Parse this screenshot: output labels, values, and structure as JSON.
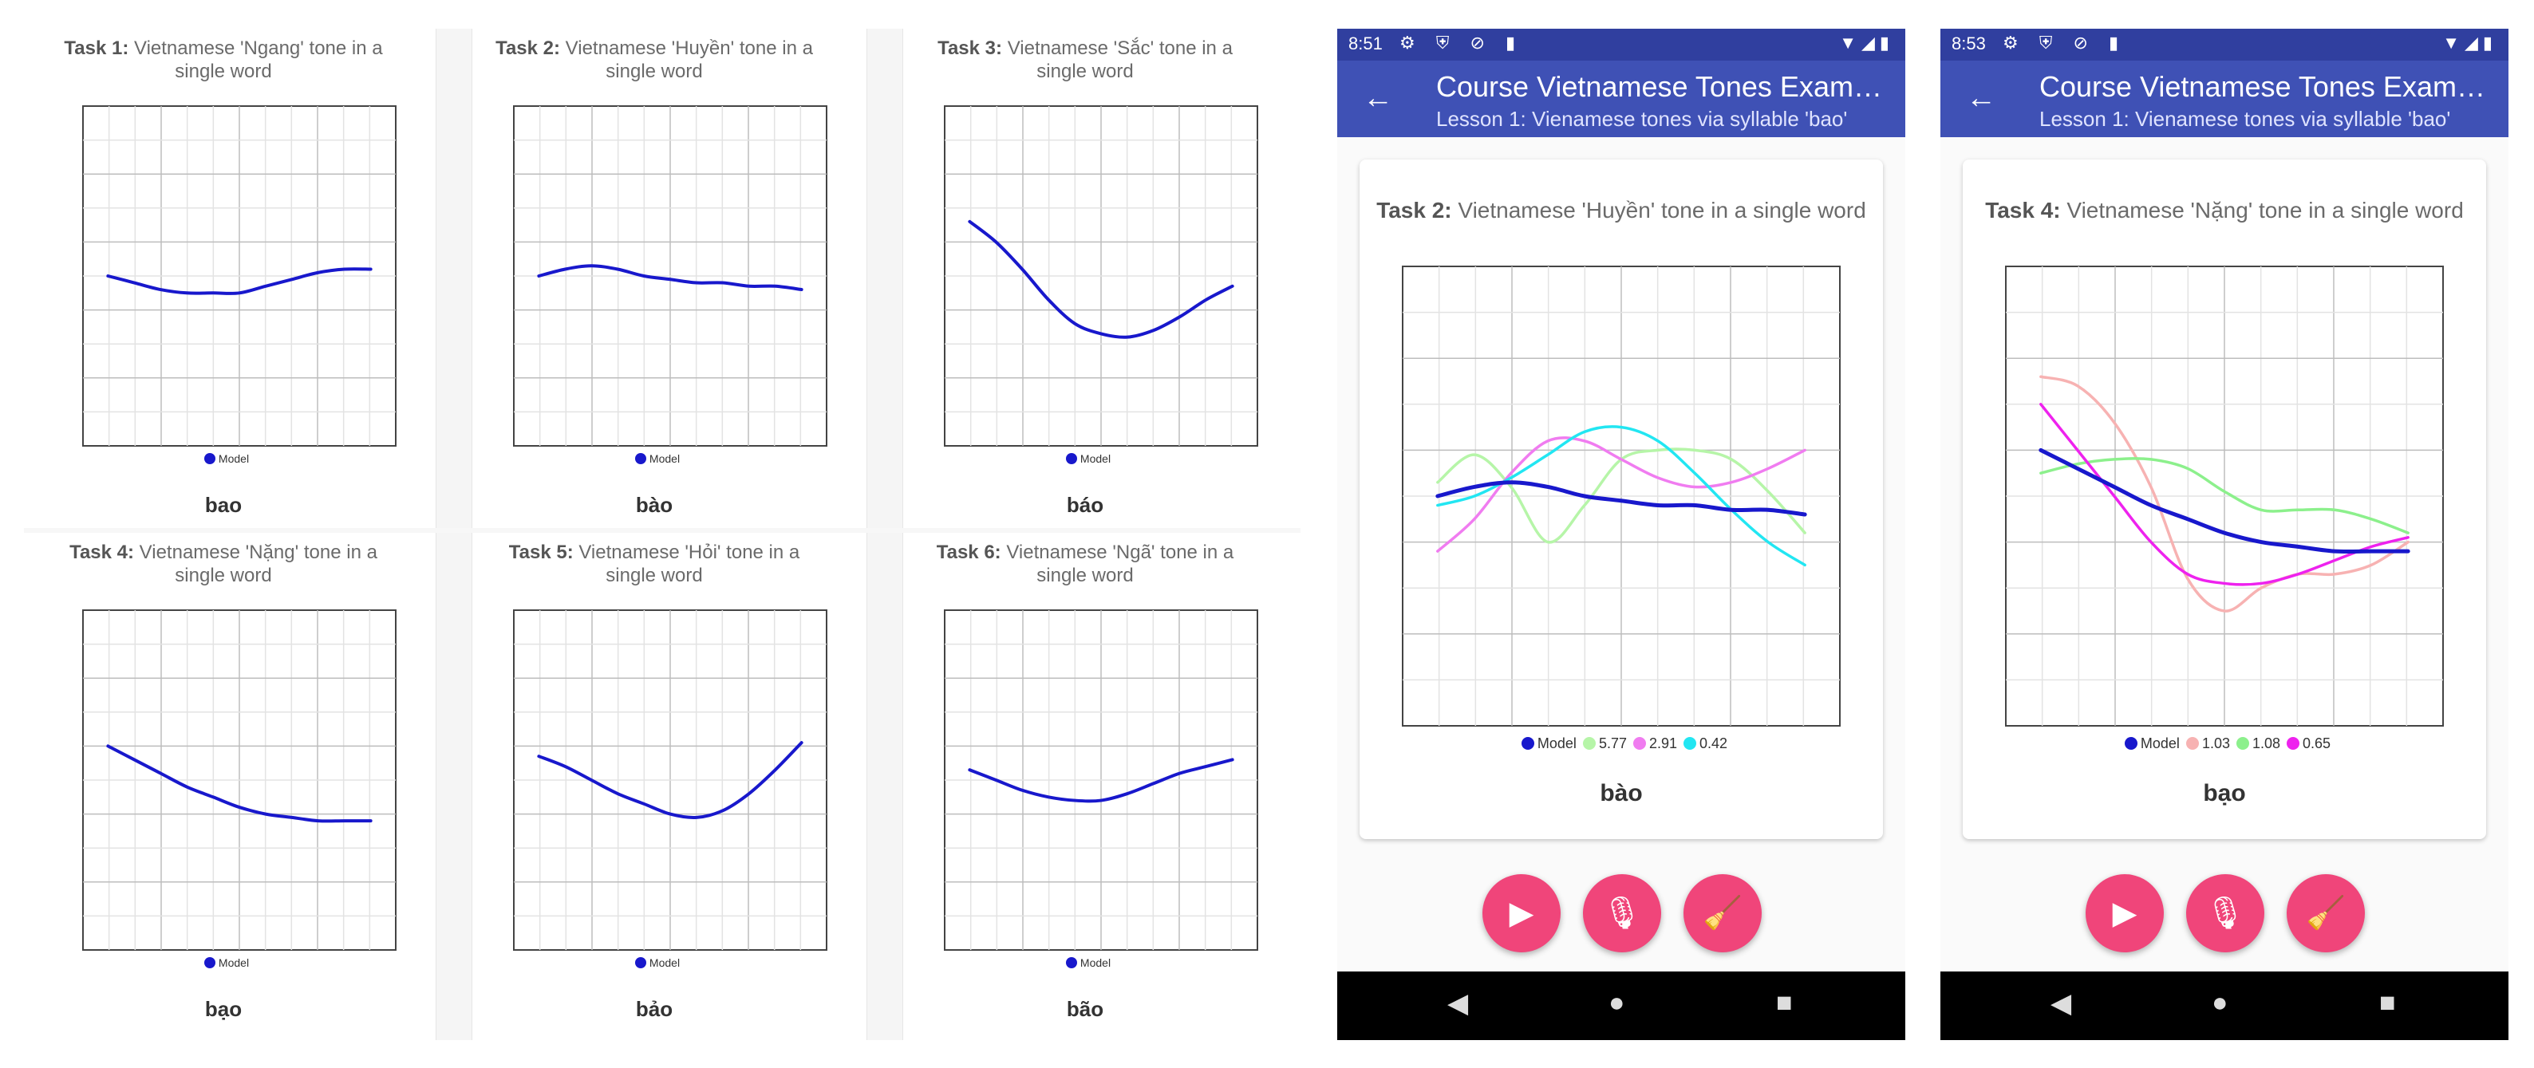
{
  "tasks": [
    {
      "label": "Task 1:",
      "desc": "Vietnamese 'Ngang' tone in a single word",
      "word": "bao",
      "legend": "Model"
    },
    {
      "label": "Task 2:",
      "desc": "Vietnamese 'Huyền' tone in a single word",
      "word": "bào",
      "legend": "Model"
    },
    {
      "label": "Task 3:",
      "desc": "Vietnamese 'Sắc' tone in a single word",
      "word": "báo",
      "legend": "Model"
    },
    {
      "label": "Task 4:",
      "desc": "Vietnamese 'Nặng' tone in a single word",
      "word": "bạo",
      "legend": "Model"
    },
    {
      "label": "Task 5:",
      "desc": "Vietnamese 'Hỏi' tone in a single word",
      "word": "bảo",
      "legend": "Model"
    },
    {
      "label": "Task 6:",
      "desc": "Vietnamese 'Ngã' tone in a single word",
      "word": "bão",
      "legend": "Model"
    }
  ],
  "phones": [
    {
      "time": "8:51",
      "status_icons": "⚙ ⛨ ⊘ ▮",
      "right_icons": "▼◢▮",
      "title": "Course Vietnamese Tones Examples",
      "subtitle": "Lesson 1: Vienamese tones via syllable 'bao'",
      "task_label": "Task 2:",
      "task_desc": "Vietnamese 'Huyền' tone in a single word",
      "word": "bào",
      "legend": [
        {
          "name": "Model",
          "color": "#1818cc"
        },
        {
          "name": "5.77",
          "color": "#b6f5a8"
        },
        {
          "name": "2.91",
          "color": "#f07cf0"
        },
        {
          "name": "0.42",
          "color": "#22e6f2"
        }
      ]
    },
    {
      "time": "8:53",
      "status_icons": "⚙ ⛨ ⊘ ▮",
      "right_icons": "▼◢▮",
      "title": "Course Vietnamese Tones Examples",
      "subtitle": "Lesson 1: Vienamese tones via syllable 'bao'",
      "task_label": "Task 4:",
      "task_desc": "Vietnamese 'Nặng' tone in a single word",
      "word": "bạo",
      "legend": [
        {
          "name": "Model",
          "color": "#1818cc"
        },
        {
          "name": "1.03",
          "color": "#f7b2b2"
        },
        {
          "name": "1.08",
          "color": "#8cf08c"
        },
        {
          "name": "0.65",
          "color": "#ee22ee"
        }
      ]
    }
  ],
  "icons": {
    "back": "arrow-left-icon",
    "play": "play-icon",
    "mic": "microphone-icon",
    "clear": "broom-icon",
    "nav": [
      "back-triangle-icon",
      "home-circle-icon",
      "recents-square-icon"
    ]
  },
  "colors": {
    "model": "#1818cc",
    "accent": "#f0457a",
    "appbar": "#3f51b5",
    "statusbar": "#303f9f"
  },
  "chart_data": [
    {
      "type": "line",
      "title": "Task 1: Vietnamese 'Ngang' tone in a single word",
      "series": [
        {
          "name": "Model",
          "y": [
            0.5,
            0.48,
            0.46,
            0.45,
            0.45,
            0.45,
            0.47,
            0.49,
            0.51,
            0.52,
            0.52
          ]
        }
      ]
    },
    {
      "type": "line",
      "title": "Task 2: Vietnamese 'Huyền' tone in a single word",
      "series": [
        {
          "name": "Model",
          "y": [
            0.5,
            0.52,
            0.53,
            0.52,
            0.5,
            0.49,
            0.48,
            0.48,
            0.47,
            0.47,
            0.46
          ]
        }
      ]
    },
    {
      "type": "line",
      "title": "Task 3: Vietnamese 'Sắc' tone in a single word",
      "series": [
        {
          "name": "Model",
          "y": [
            0.66,
            0.6,
            0.52,
            0.43,
            0.36,
            0.33,
            0.32,
            0.34,
            0.38,
            0.43,
            0.47
          ]
        }
      ]
    },
    {
      "type": "line",
      "title": "Task 4: Vietnamese 'Nặng' tone in a single word",
      "series": [
        {
          "name": "Model",
          "y": [
            0.6,
            0.56,
            0.52,
            0.48,
            0.45,
            0.42,
            0.4,
            0.39,
            0.38,
            0.38,
            0.38
          ]
        }
      ]
    },
    {
      "type": "line",
      "title": "Task 5: Vietnamese 'Hỏi' tone in a single word",
      "series": [
        {
          "name": "Model",
          "y": [
            0.57,
            0.54,
            0.5,
            0.46,
            0.43,
            0.4,
            0.39,
            0.41,
            0.46,
            0.53,
            0.61
          ]
        }
      ]
    },
    {
      "type": "line",
      "title": "Task 6: Vietnamese 'Ngã' tone in a single word",
      "series": [
        {
          "name": "Model",
          "y": [
            0.53,
            0.5,
            0.47,
            0.45,
            0.44,
            0.44,
            0.46,
            0.49,
            0.52,
            0.54,
            0.56
          ]
        }
      ]
    },
    {
      "type": "line",
      "title": "Task 2: Vietnamese 'Huyền' tone in a single word",
      "series": [
        {
          "name": "Model",
          "y": [
            0.5,
            0.52,
            0.53,
            0.52,
            0.5,
            0.49,
            0.48,
            0.48,
            0.47,
            0.47,
            0.46
          ]
        },
        {
          "name": "5.77",
          "y": [
            0.53,
            0.59,
            0.52,
            0.4,
            0.48,
            0.58,
            0.6,
            0.6,
            0.58,
            0.51,
            0.42
          ]
        },
        {
          "name": "2.91",
          "y": [
            0.38,
            0.45,
            0.55,
            0.62,
            0.62,
            0.58,
            0.54,
            0.52,
            0.53,
            0.56,
            0.6
          ]
        },
        {
          "name": "0.42",
          "y": [
            0.48,
            0.5,
            0.54,
            0.59,
            0.64,
            0.65,
            0.62,
            0.55,
            0.47,
            0.4,
            0.35
          ]
        }
      ]
    },
    {
      "type": "line",
      "title": "Task 4: Vietnamese 'Nặng' tone in a single word",
      "series": [
        {
          "name": "Model",
          "y": [
            0.6,
            0.56,
            0.52,
            0.48,
            0.45,
            0.42,
            0.4,
            0.39,
            0.38,
            0.38,
            0.38
          ]
        },
        {
          "name": "1.03",
          "y": [
            0.76,
            0.74,
            0.66,
            0.52,
            0.32,
            0.25,
            0.3,
            0.33,
            0.33,
            0.35,
            0.4
          ]
        },
        {
          "name": "1.08",
          "y": [
            0.55,
            0.57,
            0.58,
            0.58,
            0.56,
            0.51,
            0.47,
            0.47,
            0.47,
            0.45,
            0.42
          ]
        },
        {
          "name": "0.65",
          "y": [
            0.7,
            0.6,
            0.5,
            0.4,
            0.33,
            0.31,
            0.31,
            0.33,
            0.36,
            0.39,
            0.41
          ]
        }
      ]
    }
  ]
}
